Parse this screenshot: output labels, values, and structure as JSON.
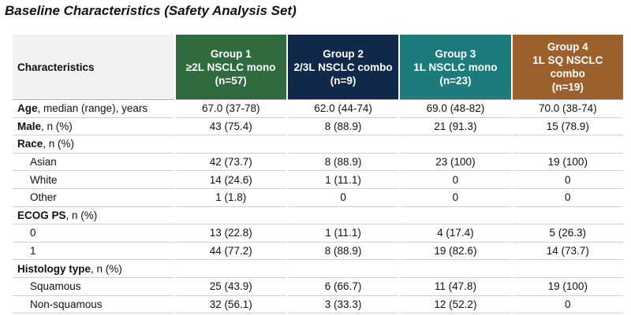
{
  "title": "Baseline Characteristics (Safety Analysis Set)",
  "table": {
    "header": {
      "label": "Characteristics",
      "groups": [
        {
          "lines": [
            "Group 1",
            "≥2L NSCLC mono",
            "(n=57)"
          ],
          "color": "#2f6b3f"
        },
        {
          "lines": [
            "Group 2",
            "2/3L NSCLC combo",
            "(n=9)"
          ],
          "color": "#10294b"
        },
        {
          "lines": [
            "Group 3",
            "1L NSCLC mono",
            "(n=23)"
          ],
          "color": "#1d7b7b"
        },
        {
          "lines": [
            "Group 4",
            "1L SQ NSCLC",
            "combo",
            "(n=19)"
          ],
          "color": "#9b602b"
        }
      ]
    },
    "rows": [
      {
        "label_bold": "Age",
        "label_rest": ", median (range), years",
        "cells": [
          "67.0 (37-78)",
          "62.0 (44-74)",
          "69.0 (48-82)",
          "70.0 (38-74)"
        ]
      },
      {
        "label_bold": "Male",
        "label_rest": ", n (%)",
        "cells": [
          "43 (75.4)",
          "8 (88.9)",
          "21 (91.3)",
          "15 (78.9)"
        ]
      },
      {
        "label_bold": "Race",
        "label_rest": ", n (%)",
        "cells": []
      },
      {
        "label": "Asian",
        "indent": true,
        "cells": [
          "42 (73.7)",
          "8 (88.9)",
          "23 (100)",
          "19 (100)"
        ]
      },
      {
        "label": "White",
        "indent": true,
        "cells": [
          "14 (24.6)",
          "1 (11.1)",
          "0",
          "0"
        ]
      },
      {
        "label": "Other",
        "indent": true,
        "cells": [
          "1 (1.8)",
          "0",
          "0",
          "0"
        ]
      },
      {
        "label_bold": "ECOG PS",
        "label_rest": ", n (%)",
        "cells": []
      },
      {
        "label": "0",
        "indent": true,
        "cells": [
          "13 (22.8)",
          "1 (11.1)",
          "4 (17.4)",
          "5 (26.3)"
        ]
      },
      {
        "label": "1",
        "indent": true,
        "cells": [
          "44 (77.2)",
          "8 (88.9)",
          "19 (82.6)",
          "14 (73.7)"
        ]
      },
      {
        "label_bold": "Histology type",
        "label_rest": ", n (%)",
        "cells": []
      },
      {
        "label": "Squamous",
        "indent": true,
        "cells": [
          "25 (43.9)",
          "6 (66.7)",
          "11 (47.8)",
          "19 (100)"
        ]
      },
      {
        "label": "Non-squamous",
        "indent": true,
        "cells": [
          "32 (56.1)",
          "3 (33.3)",
          "12 (52.2)",
          "0"
        ]
      }
    ]
  }
}
